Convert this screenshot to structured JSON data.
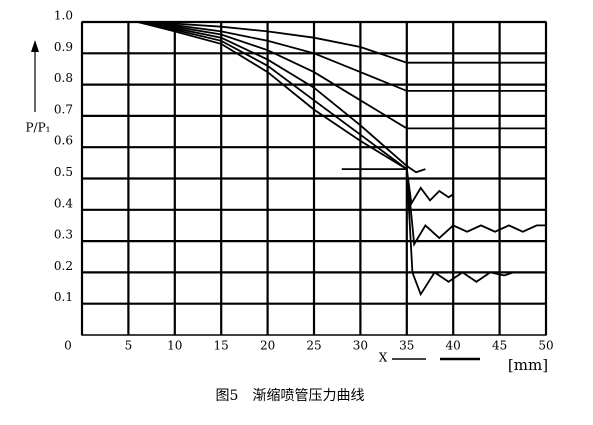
{
  "chart_data": {
    "type": "line",
    "title": "图5　渐缩喷管压力曲线",
    "y_label": "P/P₁",
    "x_label": "X",
    "x_unit": "[mm]",
    "xlim": [
      0,
      50
    ],
    "ylim": [
      0,
      1
    ],
    "xticks": [
      0,
      5,
      10,
      15,
      20,
      25,
      30,
      35,
      40,
      45,
      50
    ],
    "yticks": [
      0.1,
      0.2,
      0.3,
      0.4,
      0.5,
      0.6,
      0.7,
      0.8,
      0.9,
      {
        "value": 1,
        "label": "1.0"
      }
    ],
    "grid": true,
    "color": "#000000",
    "series": [
      {
        "color": "#000000",
        "x": [
          6,
          10,
          15,
          20,
          25,
          30,
          35,
          50
        ],
        "values": [
          1.0,
          0.995,
          0.985,
          0.97,
          0.95,
          0.92,
          0.87,
          0.87
        ]
      },
      {
        "color": "#000000",
        "x": [
          6,
          10,
          15,
          20,
          25,
          30,
          35,
          50
        ],
        "values": [
          1.0,
          0.99,
          0.97,
          0.94,
          0.9,
          0.84,
          0.78,
          0.78
        ]
      },
      {
        "color": "#000000",
        "x": [
          6,
          10,
          15,
          20,
          25,
          30,
          35,
          50
        ],
        "values": [
          1.0,
          0.985,
          0.96,
          0.91,
          0.84,
          0.75,
          0.66,
          0.66
        ]
      },
      {
        "color": "#000000",
        "x": [
          6,
          10,
          15,
          20,
          25,
          30,
          35,
          36,
          37
        ],
        "values": [
          1.0,
          0.98,
          0.95,
          0.88,
          0.79,
          0.67,
          0.54,
          0.52,
          0.53
        ]
      },
      {
        "color": "#000000",
        "x": [
          6,
          10,
          15,
          20,
          25,
          30,
          35,
          35.5,
          36.5,
          37.5,
          38.5,
          39.5,
          40
        ],
        "values": [
          1.0,
          0.975,
          0.94,
          0.86,
          0.75,
          0.64,
          0.53,
          0.42,
          0.47,
          0.43,
          0.46,
          0.44,
          0.45
        ]
      },
      {
        "color": "#000000",
        "x": [
          6,
          10,
          15,
          20,
          25,
          30,
          35,
          35.8,
          37,
          38.5,
          40,
          41.5,
          43,
          44.5,
          46,
          47.5,
          49,
          50
        ],
        "values": [
          1.0,
          0.97,
          0.93,
          0.84,
          0.72,
          0.62,
          0.53,
          0.29,
          0.35,
          0.31,
          0.35,
          0.33,
          0.35,
          0.33,
          0.35,
          0.33,
          0.35,
          0.35
        ]
      },
      {
        "color": "#000000",
        "x": [
          28,
          35,
          35.6,
          36.5,
          38,
          39.5,
          41,
          42.5,
          44,
          45.5,
          46.5
        ],
        "values": [
          0.53,
          0.53,
          0.2,
          0.13,
          0.2,
          0.17,
          0.2,
          0.17,
          0.2,
          0.19,
          0.2
        ]
      }
    ]
  }
}
